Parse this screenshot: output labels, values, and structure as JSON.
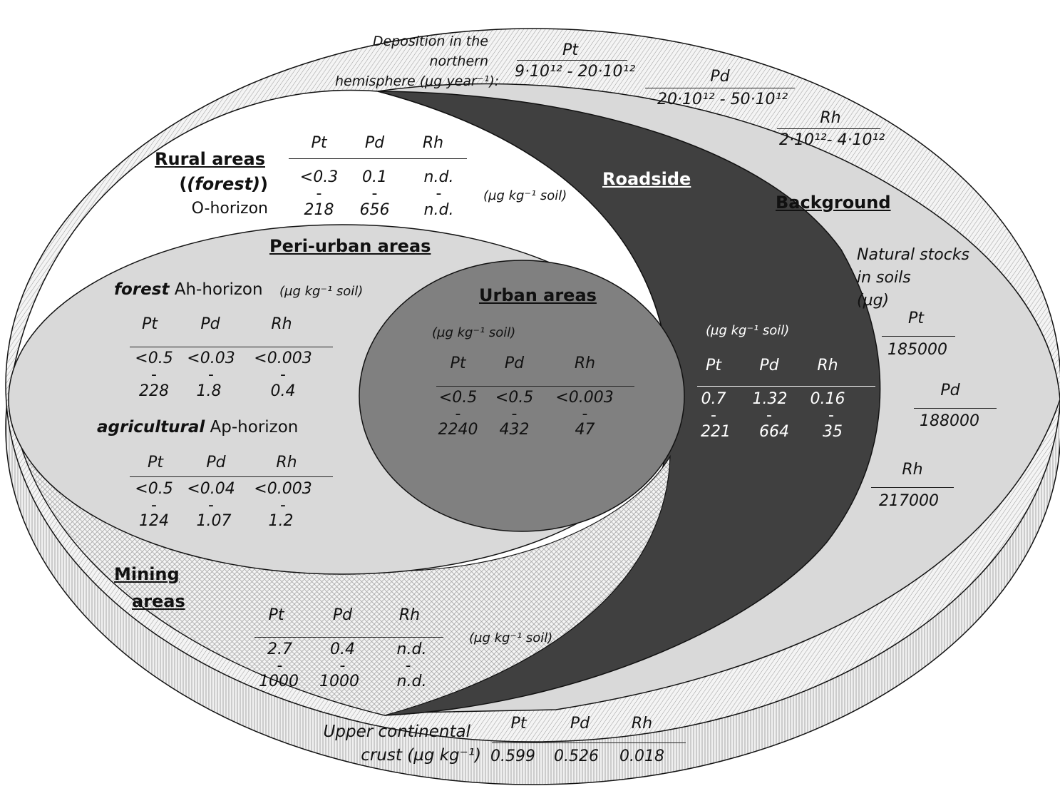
{
  "deposition": {
    "label": "Deposition in the northern hemisphere (µg year⁻¹):",
    "label_lines": [
      "Deposition in the",
      "northern",
      "hemisphere (µg year⁻¹):"
    ],
    "pt_label": "Pt",
    "pt_value": "9·10¹² - 20·10¹²",
    "pd_label": "Pd",
    "pd_value": "20·10¹² - 50·10¹²",
    "rh_label": "Rh",
    "rh_value": "2·10¹²- 4·10¹²"
  },
  "rural": {
    "title_line1": "Rural areas",
    "title_line2": "(forest)",
    "horizon": "O-horizon",
    "unit": "(µg kg⁻¹ soil)",
    "headers": [
      "Pt",
      "Pd",
      "Rh"
    ],
    "min": [
      "<0.3",
      "0.1",
      "n.d."
    ],
    "max": [
      "218",
      "656",
      "n.d."
    ]
  },
  "roadside": {
    "title": "Roadside",
    "unit": "(µg kg⁻¹ soil)",
    "headers": [
      "Pt",
      "Pd",
      "Rh"
    ],
    "min": [
      "0.7",
      "1.32",
      "0.16"
    ],
    "max": [
      "221",
      "664",
      "35"
    ]
  },
  "background": {
    "title": "Background",
    "stocks_lines": [
      "Natural stocks",
      "in soils",
      "(µg)"
    ],
    "pt_label": "Pt",
    "pt_value": "185000",
    "pd_label": "Pd",
    "pd_value": "188000",
    "rh_label": "Rh",
    "rh_value": "217000"
  },
  "periurban": {
    "title": "Peri-urban areas",
    "forest_label": "forest",
    "forest_horizon": "Ah-horizon",
    "unit": "(µg kg⁻¹ soil)",
    "forest_headers": [
      "Pt",
      "Pd",
      "Rh"
    ],
    "forest_min": [
      "<0.5",
      "<0.03",
      "<0.003"
    ],
    "forest_max": [
      "228",
      "1.8",
      "0.4"
    ],
    "agri_label": "agricultural",
    "agri_horizon": "Ap-horizon",
    "agri_headers": [
      "Pt",
      "Pd",
      "Rh"
    ],
    "agri_min": [
      "<0.5",
      "<0.04",
      "<0.003"
    ],
    "agri_max": [
      "124",
      "1.07",
      "1.2"
    ]
  },
  "urban": {
    "title": "Urban areas",
    "unit": "(µg kg⁻¹ soil)",
    "headers": [
      "Pt",
      "Pd",
      "Rh"
    ],
    "min": [
      "<0.5",
      "<0.5",
      "<0.003"
    ],
    "max": [
      "2240",
      "432",
      "47"
    ]
  },
  "mining": {
    "title_line1": "Mining",
    "title_line2": "areas",
    "unit": "(µg kg⁻¹ soil)",
    "headers": [
      "Pt",
      "Pd",
      "Rh"
    ],
    "min": [
      "2.7",
      "0.4",
      "n.d."
    ],
    "max": [
      "1000",
      "1000",
      "n.d."
    ]
  },
  "crust": {
    "label_line1": "Upper  continental",
    "label_line2": "crust (µg kg⁻¹)",
    "headers": [
      "Pt",
      "Pd",
      "Rh"
    ],
    "values": [
      "0.599",
      "0.526",
      "0.018"
    ]
  },
  "range_dash": "-",
  "colors": {
    "outer_hatch": "#f2f2f2",
    "background_zone": "#d9d9d9",
    "roadside_zone": "#404040",
    "periurban_zone": "#d9d9d9",
    "urban_zone": "#808080",
    "mining_hatch": "#eeeeee",
    "crust_rim": "#e6e6e6"
  }
}
